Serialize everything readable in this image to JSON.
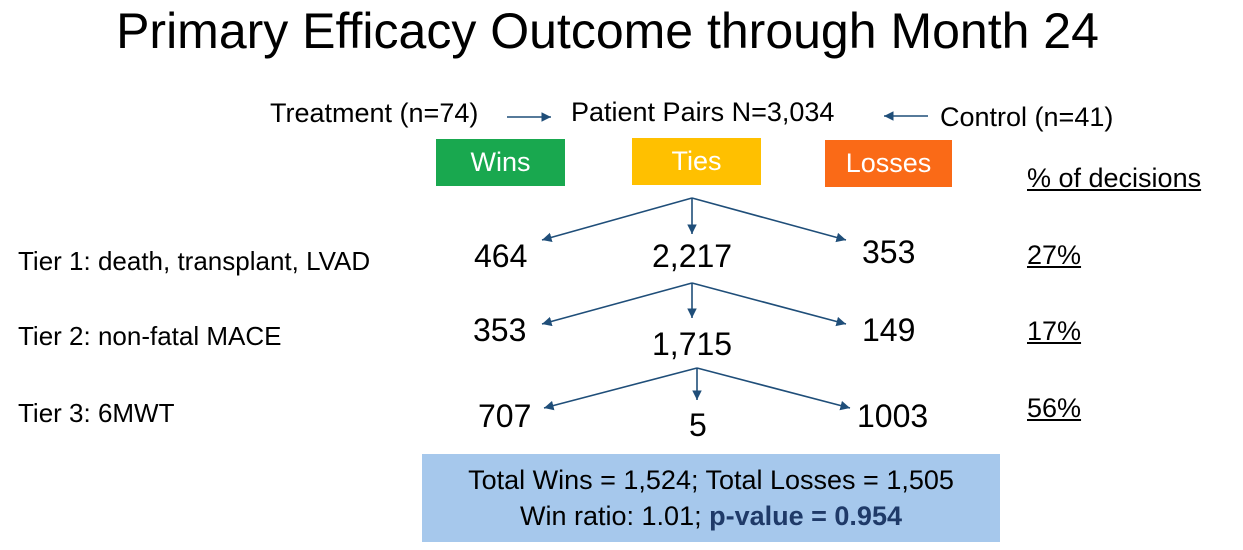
{
  "title": "Primary Efficacy Outcome through Month 24",
  "header": {
    "treatment": "Treatment (n=74)",
    "pairs": "Patient Pairs N=3,034",
    "control": "Control (n=41)"
  },
  "outcomes": {
    "wins": "Wins",
    "ties": "Ties",
    "losses": "Losses"
  },
  "colors": {
    "wins": "#19a84f",
    "ties": "#ffc000",
    "losses": "#fa6a17",
    "summary_box": "#a6c8ec",
    "arrow": "#1f4e79",
    "pvalue": "#1f3a68"
  },
  "pct_header": "% of decisions",
  "tiers": [
    {
      "label": "Tier 1: death, transplant, LVAD",
      "wins": "464",
      "ties": "2,217",
      "losses": "353",
      "pct": "27%"
    },
    {
      "label": "Tier 2: non-fatal MACE",
      "wins": "353",
      "ties": "1,715",
      "losses": "149",
      "pct": "17%"
    },
    {
      "label": "Tier 3:  6MWT",
      "wins": "707",
      "ties": "5",
      "losses": "1003",
      "pct": "56%"
    }
  ],
  "summary": {
    "line1": "Total Wins = 1,524;  Total Losses = 1,505",
    "line2_prefix": "Win ratio:  1.01; ",
    "line2_pvalue": "p-value = 0.954"
  }
}
